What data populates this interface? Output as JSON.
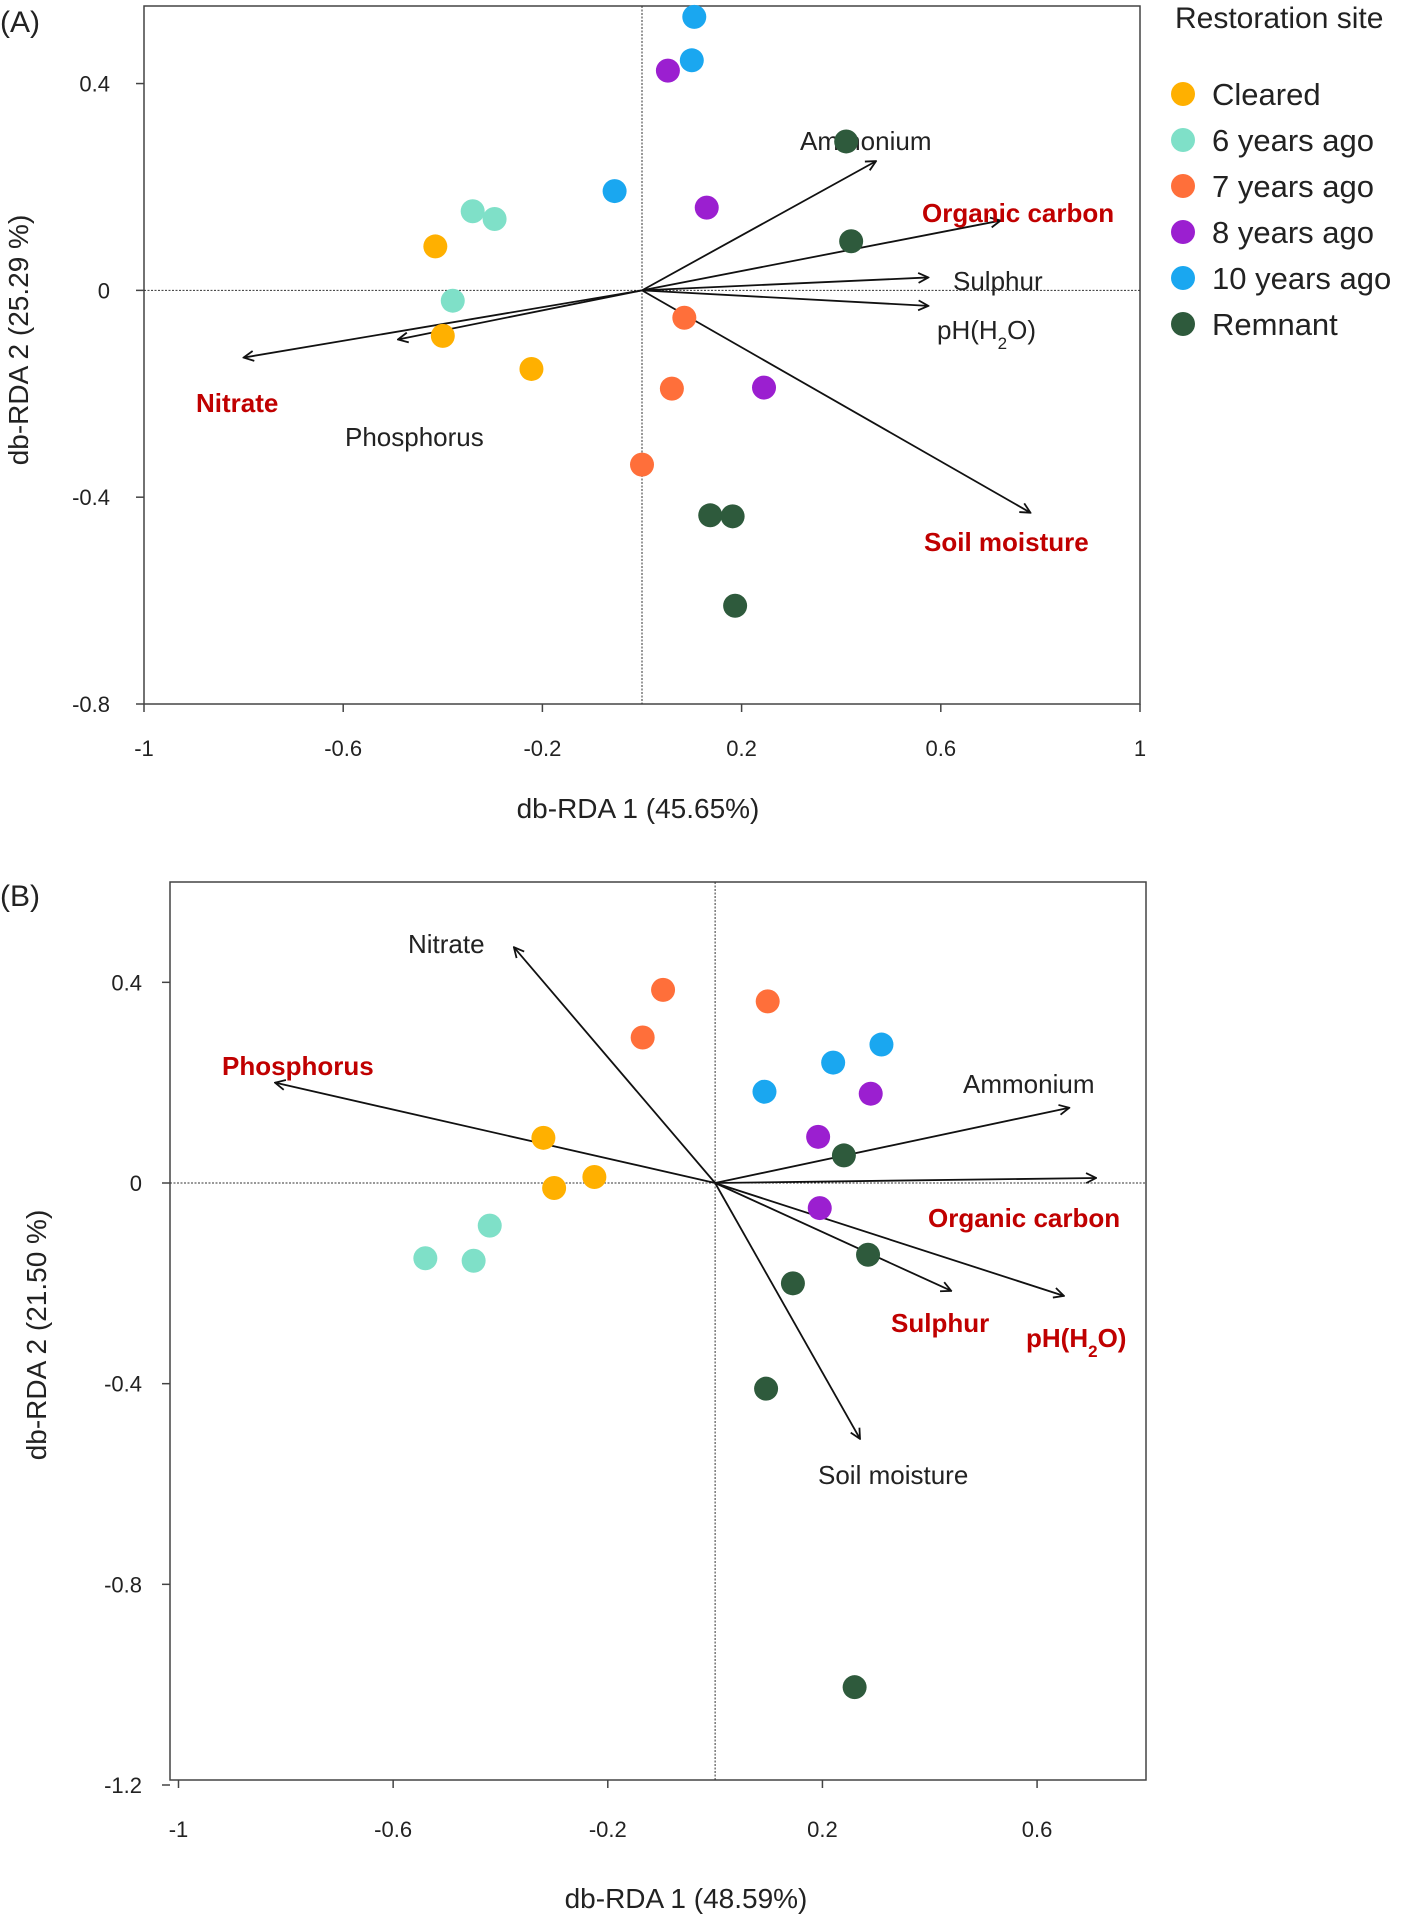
{
  "legend": {
    "title": "Restoration site",
    "entries": [
      {
        "label": "Cleared",
        "color": "#ffb000"
      },
      {
        "label": "6 years ago",
        "color": "#7fe0c8"
      },
      {
        "label": "7 years ago",
        "color": "#ff6f3a"
      },
      {
        "label": "8 years ago",
        "color": "#9b1fd0"
      },
      {
        "label": "10 years ago",
        "color": "#1aa7f0"
      },
      {
        "label": "Remnant",
        "color": "#2e5a3c"
      }
    ]
  },
  "chart_data": [
    {
      "panel_label": "(A)",
      "type": "scatter",
      "xlabel": "db-RDA 1 (45.65%)",
      "ylabel": "db-RDA 2 (25.29 %)",
      "xlim": [
        -1,
        1
      ],
      "ylim": [
        -0.8,
        0.55
      ],
      "xticks": [
        -1,
        -0.6,
        -0.2,
        0.2,
        0.6,
        1
      ],
      "xtick_labels": [
        "-1",
        "-0.6",
        "-0.2",
        "0.2",
        "0.6",
        "1"
      ],
      "yticks": [
        0.4,
        0,
        -0.4,
        -0.8
      ],
      "ytick_labels": [
        "0.4",
        "0",
        "-0.4",
        "-0.8"
      ],
      "origin": [
        0,
        0
      ],
      "points": [
        {
          "group": "Cleared",
          "x": -0.415,
          "y": 0.085
        },
        {
          "group": "Cleared",
          "x": -0.4,
          "y": -0.088
        },
        {
          "group": "Cleared",
          "x": -0.222,
          "y": -0.152
        },
        {
          "group": "6 years ago",
          "x": -0.34,
          "y": 0.153
        },
        {
          "group": "6 years ago",
          "x": -0.296,
          "y": 0.138
        },
        {
          "group": "6 years ago",
          "x": -0.38,
          "y": -0.02
        },
        {
          "group": "7 years ago",
          "x": 0.085,
          "y": -0.053
        },
        {
          "group": "7 years ago",
          "x": 0.06,
          "y": -0.19
        },
        {
          "group": "7 years ago",
          "x": 0.0,
          "y": -0.337
        },
        {
          "group": "8 years ago",
          "x": 0.052,
          "y": 0.425
        },
        {
          "group": "8 years ago",
          "x": 0.13,
          "y": 0.16
        },
        {
          "group": "8 years ago",
          "x": 0.245,
          "y": -0.188
        },
        {
          "group": "10 years ago",
          "x": 0.105,
          "y": 0.529
        },
        {
          "group": "10 years ago",
          "x": 0.1,
          "y": 0.445
        },
        {
          "group": "10 years ago",
          "x": -0.055,
          "y": 0.192
        },
        {
          "group": "Remnant",
          "x": 0.41,
          "y": 0.288
        },
        {
          "group": "Remnant",
          "x": 0.42,
          "y": 0.095
        },
        {
          "group": "Remnant",
          "x": 0.137,
          "y": -0.435
        },
        {
          "group": "Remnant",
          "x": 0.182,
          "y": -0.437
        },
        {
          "group": "Remnant",
          "x": 0.187,
          "y": -0.61
        }
      ],
      "vectors": [
        {
          "label": "Ammonium",
          "x": 0.47,
          "y": 0.25,
          "highlight": false
        },
        {
          "label": "Organic carbon",
          "x": 0.72,
          "y": 0.135,
          "highlight": true
        },
        {
          "label": "Sulphur",
          "x": 0.575,
          "y": 0.025,
          "highlight": false
        },
        {
          "label": "pH(H",
          "sub": "2",
          "suffix": "O)",
          "x": 0.575,
          "y": -0.03,
          "highlight": false
        },
        {
          "label": "Soil moisture",
          "x": 0.78,
          "y": -0.43,
          "highlight": true
        },
        {
          "label": "Nitrate",
          "x": -0.8,
          "y": -0.13,
          "highlight": true
        },
        {
          "label": "Phosphorus",
          "x": -0.49,
          "y": -0.095,
          "highlight": false
        }
      ]
    },
    {
      "panel_label": "(B)",
      "type": "scatter",
      "xlabel": "db-RDA 1 (48.59%)",
      "ylabel": "db-RDA 2 (21.50 %)",
      "xlim": [
        -1,
        0.8
      ],
      "ylim": [
        -1.2,
        0.6
      ],
      "xticks": [
        -1,
        -0.6,
        -0.2,
        0.2,
        0.6
      ],
      "xtick_labels": [
        "-1",
        "-0.6",
        "-0.2",
        "0.2",
        "0.6"
      ],
      "yticks": [
        0.4,
        0,
        -0.4,
        -0.8,
        -1.2
      ],
      "ytick_labels": [
        "0.4",
        "0",
        "-0.4",
        "-0.8",
        "-1.2"
      ],
      "origin": [
        0,
        0
      ],
      "points": [
        {
          "group": "Cleared",
          "x": -0.32,
          "y": 0.09
        },
        {
          "group": "Cleared",
          "x": -0.3,
          "y": -0.01
        },
        {
          "group": "Cleared",
          "x": -0.225,
          "y": 0.012
        },
        {
          "group": "6 years ago",
          "x": -0.42,
          "y": -0.085
        },
        {
          "group": "6 years ago",
          "x": -0.54,
          "y": -0.15
        },
        {
          "group": "6 years ago",
          "x": -0.45,
          "y": -0.155
        },
        {
          "group": "7 years ago",
          "x": -0.097,
          "y": 0.385
        },
        {
          "group": "7 years ago",
          "x": 0.098,
          "y": 0.362
        },
        {
          "group": "7 years ago",
          "x": -0.135,
          "y": 0.29
        },
        {
          "group": "8 years ago",
          "x": 0.29,
          "y": 0.178
        },
        {
          "group": "8 years ago",
          "x": 0.192,
          "y": 0.092
        },
        {
          "group": "8 years ago",
          "x": 0.195,
          "y": -0.05
        },
        {
          "group": "10 years ago",
          "x": 0.31,
          "y": 0.276
        },
        {
          "group": "10 years ago",
          "x": 0.22,
          "y": 0.24
        },
        {
          "group": "10 years ago",
          "x": 0.092,
          "y": 0.182
        },
        {
          "group": "Remnant",
          "x": 0.24,
          "y": 0.055
        },
        {
          "group": "Remnant",
          "x": 0.285,
          "y": -0.143
        },
        {
          "group": "Remnant",
          "x": 0.145,
          "y": -0.2
        },
        {
          "group": "Remnant",
          "x": 0.095,
          "y": -0.41
        },
        {
          "group": "Remnant",
          "x": 0.26,
          "y": -1.005
        }
      ],
      "vectors": [
        {
          "label": "Nitrate",
          "x": -0.375,
          "y": 0.47,
          "highlight": false
        },
        {
          "label": "Phosphorus",
          "x": -0.82,
          "y": 0.2,
          "highlight": true
        },
        {
          "label": "Ammonium",
          "x": 0.66,
          "y": 0.15,
          "highlight": false
        },
        {
          "label": "Organic carbon",
          "x": 0.71,
          "y": 0.01,
          "highlight": true
        },
        {
          "label": "Sulphur",
          "x": 0.44,
          "y": -0.215,
          "highlight": true
        },
        {
          "label": "pH(H",
          "sub": "2",
          "suffix": "O)",
          "x": 0.65,
          "y": -0.225,
          "highlight": true
        },
        {
          "label": "Soil moisture",
          "x": 0.27,
          "y": -0.51,
          "highlight": false
        }
      ]
    }
  ]
}
